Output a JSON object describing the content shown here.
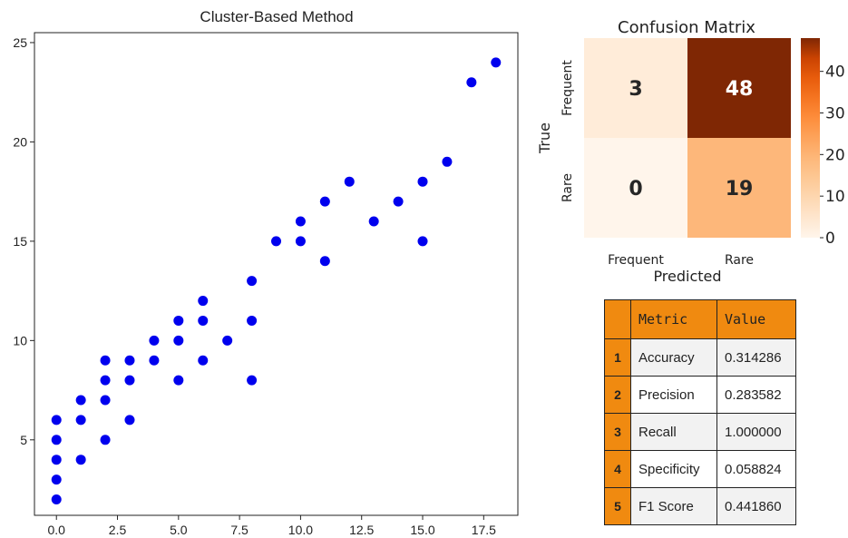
{
  "chart_data": [
    {
      "type": "scatter",
      "title": "Cluster-Based Method",
      "xlabel": "",
      "ylabel": "",
      "xlim": [
        -0.9,
        18.9
      ],
      "ylim": [
        1.2,
        25.5
      ],
      "xticks": [
        0.0,
        2.5,
        5.0,
        7.5,
        10.0,
        12.5,
        15.0,
        17.5
      ],
      "xtick_labels": [
        "0.0",
        "2.5",
        "5.0",
        "7.5",
        "10.0",
        "12.5",
        "15.0",
        "17.5"
      ],
      "yticks": [
        5,
        10,
        15,
        20,
        25
      ],
      "ytick_labels": [
        "5",
        "10",
        "15",
        "20",
        "25"
      ],
      "marker_color": "#0000ee",
      "points": [
        [
          0,
          2
        ],
        [
          0,
          3
        ],
        [
          0,
          4
        ],
        [
          0,
          5
        ],
        [
          0,
          6
        ],
        [
          1,
          4
        ],
        [
          1,
          6
        ],
        [
          1,
          7
        ],
        [
          2,
          5
        ],
        [
          2,
          7
        ],
        [
          2,
          8
        ],
        [
          2,
          9
        ],
        [
          3,
          6
        ],
        [
          3,
          8
        ],
        [
          3,
          9
        ],
        [
          4,
          9
        ],
        [
          4,
          10
        ],
        [
          5,
          8
        ],
        [
          5,
          10
        ],
        [
          5,
          11
        ],
        [
          6,
          9
        ],
        [
          6,
          11
        ],
        [
          6,
          12
        ],
        [
          7,
          10
        ],
        [
          8,
          8
        ],
        [
          8,
          11
        ],
        [
          8,
          13
        ],
        [
          9,
          15
        ],
        [
          10,
          15
        ],
        [
          10,
          16
        ],
        [
          11,
          14
        ],
        [
          11,
          17
        ],
        [
          12,
          18
        ],
        [
          13,
          16
        ],
        [
          14,
          17
        ],
        [
          15,
          15
        ],
        [
          15,
          18
        ],
        [
          16,
          19
        ],
        [
          17,
          23
        ],
        [
          18,
          24
        ]
      ]
    },
    {
      "type": "heatmap",
      "title": "Confusion Matrix",
      "xlabel": "Predicted",
      "ylabel": "True",
      "x_categories": [
        "Frequent",
        "Rare"
      ],
      "y_categories": [
        "Frequent",
        "Rare"
      ],
      "values": [
        [
          3,
          48
        ],
        [
          0,
          19
        ]
      ],
      "colorbar": {
        "min": 0,
        "max": 48,
        "ticks": [
          0,
          10,
          20,
          30,
          40
        ],
        "tick_labels": [
          "0",
          "10",
          "20",
          "30",
          "40"
        ]
      },
      "colormap": "Oranges"
    }
  ],
  "metrics_table": {
    "headers": [
      "Metric",
      "Value"
    ],
    "rows": [
      {
        "index": "1",
        "metric": "Accuracy",
        "value": "0.314286"
      },
      {
        "index": "2",
        "metric": "Precision",
        "value": "0.283582"
      },
      {
        "index": "3",
        "metric": "Recall",
        "value": "1.000000"
      },
      {
        "index": "4",
        "metric": "Specificity",
        "value": "0.058824"
      },
      {
        "index": "5",
        "metric": "F1 Score",
        "value": "0.441860"
      }
    ]
  }
}
